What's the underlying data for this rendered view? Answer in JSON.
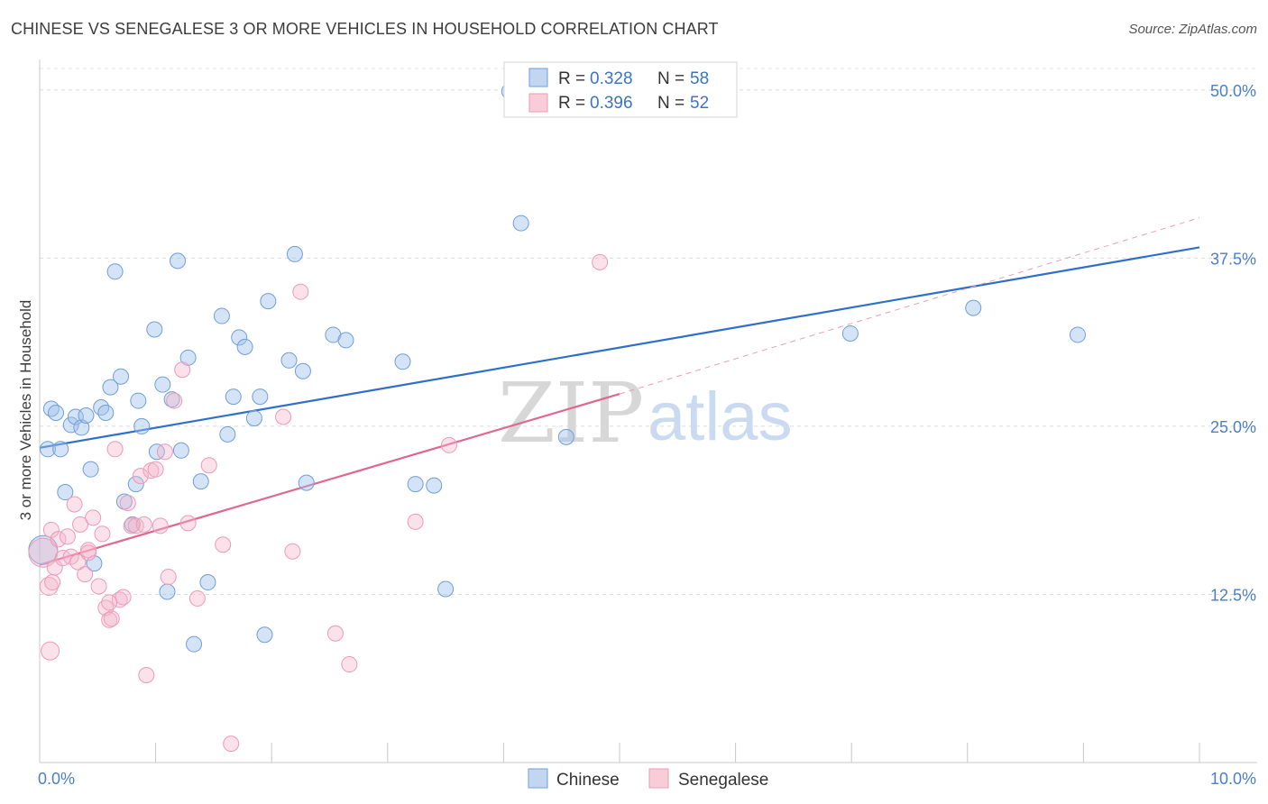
{
  "title": "CHINESE VS SENEGALESE 3 OR MORE VEHICLES IN HOUSEHOLD CORRELATION CHART",
  "source": "Source: ZipAtlas.com",
  "watermark": {
    "zip": "ZIP",
    "atlas": "atlas"
  },
  "legend": {
    "chinese": {
      "r_label": "R = ",
      "r_value": "0.328",
      "n_label": "N = ",
      "n_value": "58"
    },
    "senegalese": {
      "r_label": "R = ",
      "r_value": "0.396",
      "n_label": "N = ",
      "n_value": "52"
    }
  },
  "chart_data": {
    "type": "scatter",
    "title": "CHINESE VS SENEGALESE 3 OR MORE VEHICLES IN HOUSEHOLD CORRELATION CHART",
    "xlabel": "",
    "ylabel": "3 or more Vehicles in Household",
    "xlim": [
      0,
      10
    ],
    "ylim": [
      0,
      52
    ],
    "x_tick_labels": [
      "0.0%",
      "10.0%"
    ],
    "y_ticks": [
      12.5,
      25.0,
      37.5,
      50.0
    ],
    "y_tick_labels": [
      "12.5%",
      "25.0%",
      "37.5%",
      "50.0%"
    ],
    "colors": {
      "chinese": "#6f9fd8",
      "chinese_line": "#2f6fcc",
      "senegalese": "#ee9ab5",
      "senegalese_line": "#e0678f",
      "tick": "#4a7fc9"
    },
    "series": [
      {
        "name": "Chinese",
        "trend": {
          "x": [
            0,
            10
          ],
          "y": [
            23.4,
            38.3
          ],
          "dashed": false
        },
        "points": [
          [
            0.03,
            15.8
          ],
          [
            0.07,
            23.3
          ],
          [
            0.1,
            26.3
          ],
          [
            0.14,
            26.0
          ],
          [
            0.18,
            23.3
          ],
          [
            0.22,
            20.1
          ],
          [
            0.27,
            25.1
          ],
          [
            0.31,
            25.7
          ],
          [
            0.36,
            24.9
          ],
          [
            0.4,
            25.8
          ],
          [
            0.44,
            21.8
          ],
          [
            0.47,
            14.8
          ],
          [
            0.53,
            26.4
          ],
          [
            0.57,
            26.0
          ],
          [
            0.61,
            27.9
          ],
          [
            0.65,
            36.5
          ],
          [
            0.7,
            28.7
          ],
          [
            0.73,
            19.4
          ],
          [
            0.8,
            17.7
          ],
          [
            0.83,
            20.7
          ],
          [
            0.85,
            26.9
          ],
          [
            0.88,
            25.0
          ],
          [
            0.99,
            32.2
          ],
          [
            1.01,
            23.1
          ],
          [
            1.06,
            28.1
          ],
          [
            1.1,
            12.7
          ],
          [
            1.14,
            27.0
          ],
          [
            1.19,
            37.3
          ],
          [
            1.22,
            23.2
          ],
          [
            1.28,
            30.1
          ],
          [
            1.33,
            8.8
          ],
          [
            1.39,
            20.9
          ],
          [
            1.45,
            13.4
          ],
          [
            1.57,
            33.2
          ],
          [
            1.62,
            24.4
          ],
          [
            1.67,
            27.2
          ],
          [
            1.72,
            31.6
          ],
          [
            1.77,
            30.9
          ],
          [
            1.85,
            25.6
          ],
          [
            1.9,
            27.2
          ],
          [
            1.94,
            9.5
          ],
          [
            1.97,
            34.3
          ],
          [
            2.15,
            29.9
          ],
          [
            2.2,
            37.8
          ],
          [
            2.27,
            29.1
          ],
          [
            2.3,
            20.8
          ],
          [
            2.53,
            31.8
          ],
          [
            2.64,
            31.4
          ],
          [
            3.13,
            29.8
          ],
          [
            3.24,
            20.7
          ],
          [
            3.4,
            20.6
          ],
          [
            3.5,
            12.9
          ],
          [
            4.05,
            49.9
          ],
          [
            4.15,
            40.1
          ],
          [
            4.54,
            24.2
          ],
          [
            6.99,
            31.9
          ],
          [
            8.05,
            33.8
          ],
          [
            8.95,
            31.8
          ]
        ]
      },
      {
        "name": "Senegalese",
        "trend": {
          "x": [
            0,
            5.0
          ],
          "y": [
            14.7,
            27.4
          ],
          "dashed": false,
          "extension": {
            "x": [
              5.0,
              10.0
            ],
            "y": [
              27.4,
              40.5
            ],
            "dashed": true
          }
        },
        "points": [
          [
            0.03,
            15.6
          ],
          [
            0.08,
            13.1
          ],
          [
            0.09,
            8.3
          ],
          [
            0.1,
            17.3
          ],
          [
            0.13,
            14.5
          ],
          [
            0.16,
            16.6
          ],
          [
            0.2,
            15.2
          ],
          [
            0.24,
            16.8
          ],
          [
            0.27,
            15.3
          ],
          [
            0.3,
            19.2
          ],
          [
            0.35,
            17.7
          ],
          [
            0.39,
            14.0
          ],
          [
            0.42,
            15.8
          ],
          [
            0.46,
            18.2
          ],
          [
            0.51,
            13.1
          ],
          [
            0.54,
            17.0
          ],
          [
            0.57,
            11.5
          ],
          [
            0.6,
            10.6
          ],
          [
            0.62,
            10.7
          ],
          [
            0.65,
            23.3
          ],
          [
            0.69,
            12.1
          ],
          [
            0.72,
            12.3
          ],
          [
            0.76,
            19.3
          ],
          [
            0.79,
            17.6
          ],
          [
            0.83,
            17.6
          ],
          [
            0.87,
            21.3
          ],
          [
            0.9,
            17.7
          ],
          [
            0.92,
            6.5
          ],
          [
            0.96,
            21.7
          ],
          [
            1.0,
            21.8
          ],
          [
            1.04,
            17.6
          ],
          [
            1.08,
            23.1
          ],
          [
            1.11,
            13.8
          ],
          [
            1.16,
            26.9
          ],
          [
            1.23,
            29.2
          ],
          [
            1.28,
            17.8
          ],
          [
            1.36,
            12.2
          ],
          [
            1.46,
            22.1
          ],
          [
            1.58,
            16.2
          ],
          [
            1.65,
            1.4
          ],
          [
            2.1,
            25.7
          ],
          [
            2.18,
            15.7
          ],
          [
            2.25,
            35.0
          ],
          [
            2.55,
            9.6
          ],
          [
            2.67,
            7.3
          ],
          [
            3.24,
            17.9
          ],
          [
            3.53,
            23.6
          ],
          [
            4.83,
            37.2
          ],
          [
            0.11,
            13.4
          ],
          [
            0.6,
            11.9
          ],
          [
            0.42,
            15.6
          ],
          [
            0.33,
            14.9
          ]
        ]
      }
    ]
  }
}
